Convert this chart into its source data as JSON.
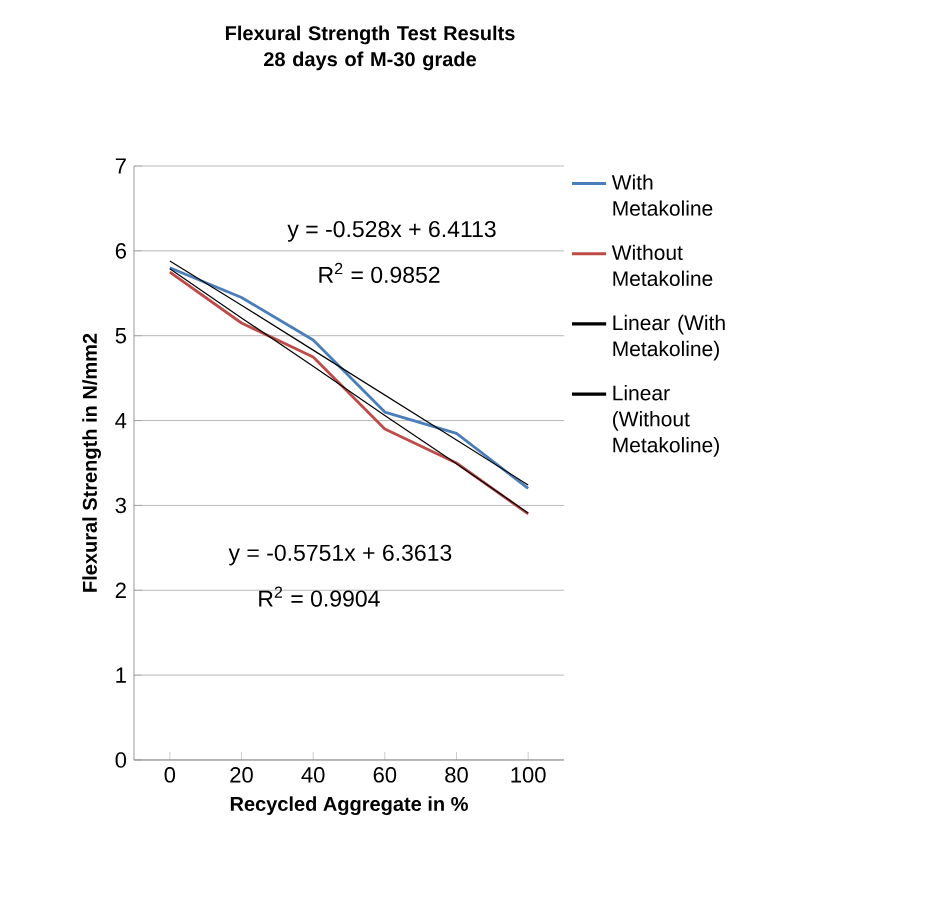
{
  "chart_data": {
    "type": "line",
    "title": "Flexural Strength  Test Results 28 days of M-30 grade",
    "xlabel": "Recycled Aggregate in %",
    "ylabel": "Flexural Strength in N/mm2",
    "categories": [
      "0",
      "20",
      "40",
      "60",
      "80",
      "100"
    ],
    "series": [
      {
        "name": "With Metakoline",
        "color": "#4a7ebb",
        "values": [
          5.8,
          5.45,
          4.95,
          4.1,
          3.85,
          3.2
        ]
      },
      {
        "name": "Without Metakoline",
        "color": "#be4b48",
        "values": [
          5.75,
          5.15,
          4.75,
          3.9,
          3.5,
          2.9
        ]
      },
      {
        "name": "Linear (With Metakoline)",
        "color": "#000000",
        "values": [
          5.88,
          5.36,
          4.83,
          4.3,
          3.77,
          3.24
        ]
      },
      {
        "name": "Linear (Without Metakoline)",
        "color": "#000000",
        "values": [
          5.79,
          5.21,
          4.64,
          4.06,
          3.49,
          2.91
        ]
      }
    ],
    "annotations": [
      "y = -0.528x + 6.4113",
      "R$^{2}$ = 0.9852",
      "y = -0.5751x + 6.3613",
      "R$^{2}$ = 0.9904"
    ],
    "ylim": [
      0,
      7
    ],
    "yticks": [
      0,
      1,
      2,
      3,
      4,
      5,
      6,
      7
    ],
    "grid": "y",
    "legend": "right",
    "marker": "none"
  }
}
